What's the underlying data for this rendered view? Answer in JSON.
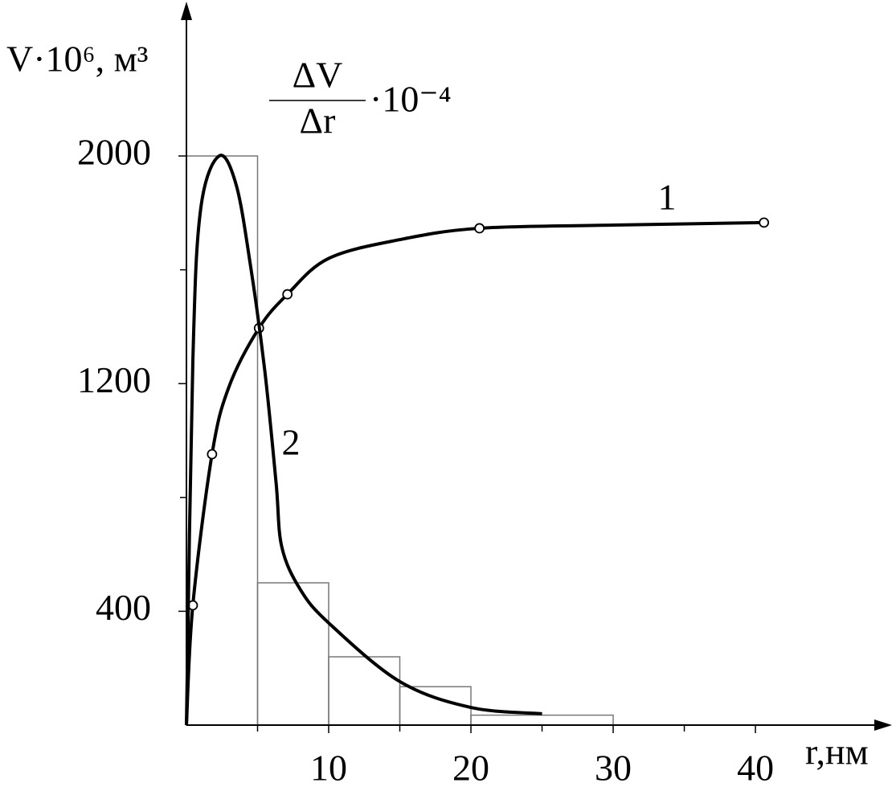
{
  "chart_data": {
    "type": "line",
    "ylabel": "V·10⁶, м³",
    "ylabel2": {
      "numerator": "ΔV",
      "denominator": "Δr",
      "factor": "·10⁻⁴"
    },
    "xlabel": "r,нм",
    "xlim": [
      0,
      49.6
    ],
    "ylim": [
      0,
      2534
    ],
    "xticks": [
      10,
      20,
      30,
      40
    ],
    "xminor_ticks": [
      5,
      15,
      25,
      35
    ],
    "yticks": [
      400,
      1200,
      2000
    ],
    "yminor_ticks": [
      800,
      1600
    ],
    "histogram": {
      "bins": [
        0,
        5,
        10,
        15,
        20,
        30
      ],
      "counts": [
        2000,
        500,
        240,
        135,
        35
      ],
      "color": "#777777"
    },
    "series": [
      {
        "name": "1",
        "color": "#000000",
        "x": [
          0,
          0.45,
          1.8,
          3,
          5.1,
          7.1,
          10,
          15,
          20.6,
          30,
          40.6
        ],
        "values": [
          0,
          421,
          952,
          1190,
          1395,
          1514,
          1640,
          1706,
          1746,
          1757,
          1766
        ],
        "points_x": [
          0.45,
          1.8,
          5.1,
          7.1,
          20.6,
          40.6
        ],
        "points": [
          421,
          952,
          1395,
          1514,
          1746,
          1766
        ]
      },
      {
        "name": "2",
        "color": "#000000",
        "x": [
          0,
          0.45,
          1,
          2.3,
          3.5,
          4.5,
          5.5,
          6.3,
          6.7,
          8,
          10,
          15,
          20,
          25
        ],
        "values": [
          0,
          1277,
          1813,
          2000,
          1898,
          1616,
          1249,
          853,
          627,
          477,
          359,
          153,
          62,
          40
        ]
      }
    ]
  }
}
